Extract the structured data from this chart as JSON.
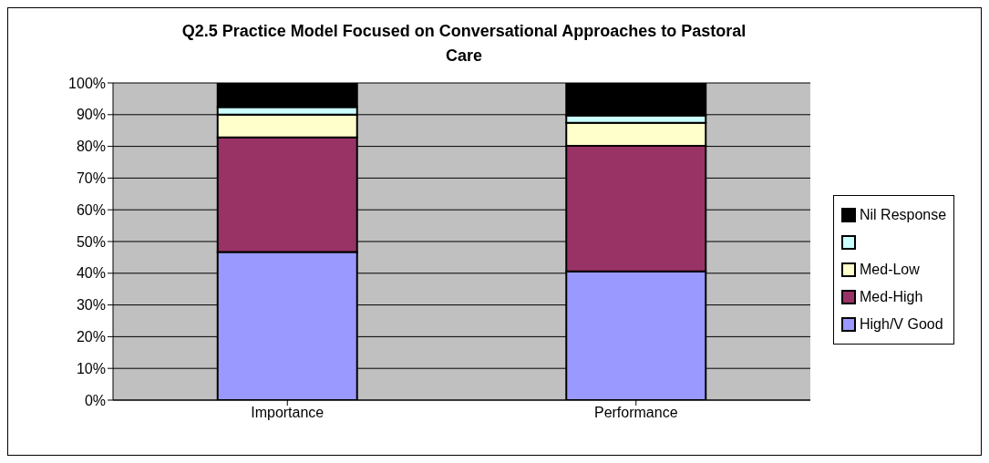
{
  "chart_data": {
    "type": "bar",
    "title": "Q2.5  Practice Model Focused on Conversational Approaches to Pastoral Care",
    "categories": [
      "Importance",
      "Performance"
    ],
    "stacked": true,
    "series": [
      {
        "name": "High/V Good",
        "color": "#9999ff",
        "values": [
          46.7,
          40.6
        ]
      },
      {
        "name": "Med-High",
        "color": "#993366",
        "values": [
          36.1,
          39.6
        ]
      },
      {
        "name": "Med-Low",
        "color": "#ffffcc",
        "values": [
          7.2,
          7.2
        ]
      },
      {
        "color": "#ccffff",
        "values": [
          2.4,
          2.3
        ]
      },
      {
        "name": "Nil Response",
        "color": "#000000",
        "values": [
          7.6,
          10.3
        ]
      }
    ],
    "ylim": [
      0,
      100
    ],
    "yticks": [
      {
        "value": 0,
        "label": "0%"
      },
      {
        "value": 10,
        "label": "10%"
      },
      {
        "value": 20,
        "label": "20%"
      },
      {
        "value": 30,
        "label": "30%"
      },
      {
        "value": 40,
        "label": "40%"
      },
      {
        "value": 50,
        "label": "50%"
      },
      {
        "value": 60,
        "label": "60%"
      },
      {
        "value": 70,
        "label": "70%"
      },
      {
        "value": 80,
        "label": "80%"
      },
      {
        "value": 90,
        "label": "90%"
      },
      {
        "value": 100,
        "label": "100%"
      }
    ],
    "grid": "y",
    "legend": "right"
  }
}
